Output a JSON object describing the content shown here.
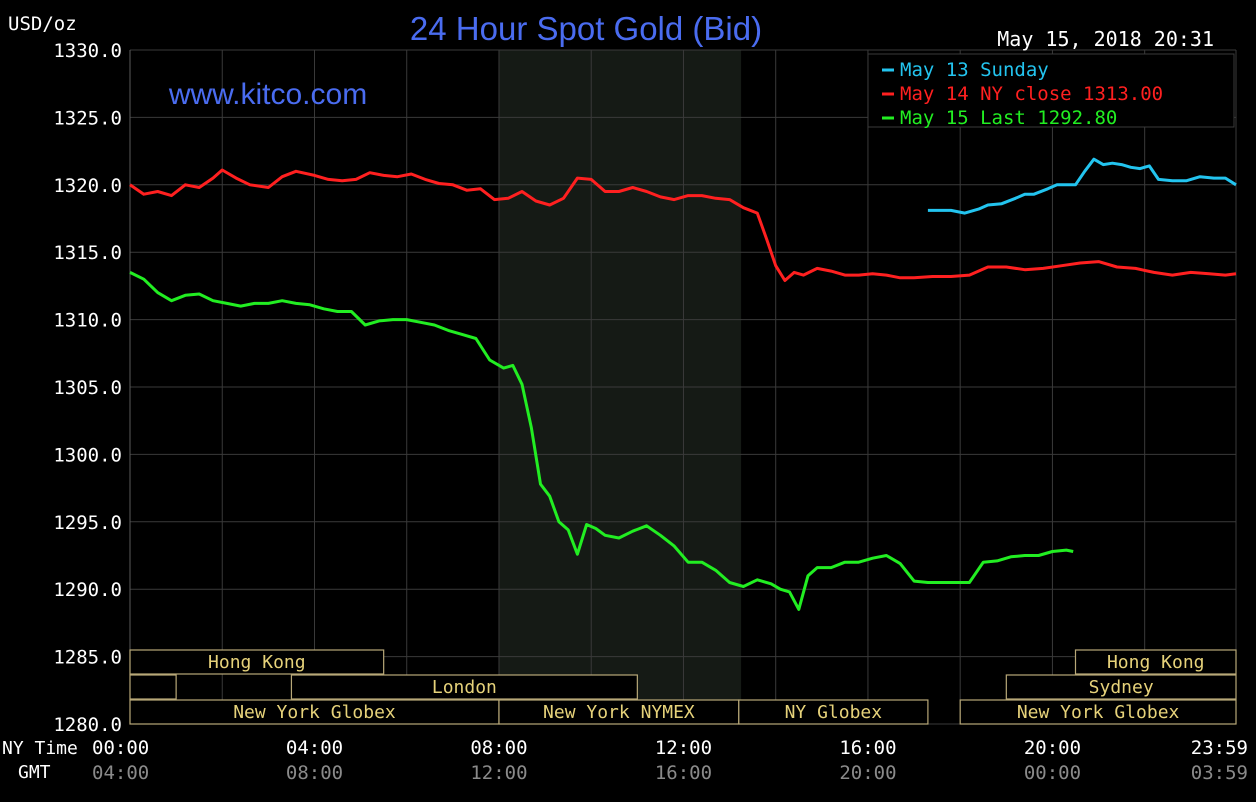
{
  "chart_data": {
    "type": "line",
    "title": "24 Hour Spot Gold (Bid)",
    "unit_label": "USD/oz",
    "watermark": "www.kitco.com",
    "timestamp": "May 15, 2018 20:31",
    "ylim": [
      1280,
      1330
    ],
    "y_ticks": [
      "1330.0",
      "1325.0",
      "1320.0",
      "1315.0",
      "1310.0",
      "1305.0",
      "1300.0",
      "1295.0",
      "1290.0",
      "1285.0",
      "1280.0"
    ],
    "x_axis_label_ny": "NY Time",
    "x_axis_label_gmt": "GMT",
    "x_ticks_ny": [
      "00:00",
      "04:00",
      "08:00",
      "12:00",
      "16:00",
      "20:00",
      "23:59"
    ],
    "x_ticks_gmt": [
      "04:00",
      "08:00",
      "12:00",
      "16:00",
      "20:00",
      "00:00",
      "03:59"
    ],
    "grid": true,
    "legend_position": "top-right",
    "colors": {
      "background": "#000000",
      "grid": "#3a3a3a",
      "title": "#4a6cf0",
      "session_fill": "#151a15",
      "session_border": "#b8a878",
      "session_text": "#e6d27a"
    },
    "series": [
      {
        "name": "May 13 Sunday",
        "color": "#23c4ef",
        "x": [
          17.3,
          17.6,
          17.8,
          18.1,
          18.4,
          18.6,
          18.9,
          19.2,
          19.4,
          19.6,
          19.9,
          20.1,
          20.3,
          20.5,
          20.7,
          20.9,
          21.1,
          21.3,
          21.5,
          21.7,
          21.9,
          22.1,
          22.3,
          22.6,
          22.9,
          23.2,
          23.5,
          23.75,
          23.98
        ],
        "values": [
          1318.1,
          1318.1,
          1318.1,
          1317.9,
          1318.2,
          1318.5,
          1318.6,
          1319.0,
          1319.3,
          1319.3,
          1319.7,
          1320.0,
          1320.0,
          1320.0,
          1321.0,
          1321.9,
          1321.5,
          1321.6,
          1321.5,
          1321.3,
          1321.2,
          1321.4,
          1320.4,
          1320.3,
          1320.3,
          1320.6,
          1320.5,
          1320.5,
          1320.0
        ]
      },
      {
        "name": "May 14 NY close 1313.00",
        "color": "#ff2020",
        "x": [
          0.0,
          0.3,
          0.6,
          0.9,
          1.2,
          1.5,
          1.8,
          2.0,
          2.3,
          2.6,
          3.0,
          3.3,
          3.6,
          4.0,
          4.3,
          4.6,
          4.9,
          5.2,
          5.5,
          5.8,
          6.1,
          6.4,
          6.7,
          7.0,
          7.3,
          7.6,
          7.9,
          8.2,
          8.5,
          8.8,
          9.1,
          9.4,
          9.7,
          10.0,
          10.3,
          10.6,
          10.9,
          11.2,
          11.5,
          11.8,
          12.1,
          12.4,
          12.7,
          13.0,
          13.3,
          13.6,
          13.8,
          14.0,
          14.2,
          14.4,
          14.6,
          14.9,
          15.2,
          15.5,
          15.8,
          16.1,
          16.4,
          16.7,
          17.0,
          17.4,
          17.8,
          18.2,
          18.6,
          19.0,
          19.4,
          19.8,
          20.2,
          20.6,
          21.0,
          21.4,
          21.8,
          22.2,
          22.6,
          23.0,
          23.4,
          23.75,
          23.98
        ],
        "values": [
          1320.0,
          1319.3,
          1319.5,
          1319.2,
          1320.0,
          1319.8,
          1320.5,
          1321.1,
          1320.5,
          1320.0,
          1319.8,
          1320.6,
          1321.0,
          1320.7,
          1320.4,
          1320.3,
          1320.4,
          1320.9,
          1320.7,
          1320.6,
          1320.8,
          1320.4,
          1320.1,
          1320.0,
          1319.6,
          1319.7,
          1318.9,
          1319.0,
          1319.5,
          1318.8,
          1318.5,
          1319.0,
          1320.5,
          1320.4,
          1319.5,
          1319.5,
          1319.8,
          1319.5,
          1319.1,
          1318.9,
          1319.2,
          1319.2,
          1319.0,
          1318.9,
          1318.3,
          1317.9,
          1316.0,
          1314.0,
          1312.9,
          1313.5,
          1313.3,
          1313.8,
          1313.6,
          1313.3,
          1313.3,
          1313.4,
          1313.3,
          1313.1,
          1313.1,
          1313.2,
          1313.2,
          1313.3,
          1313.9,
          1313.9,
          1313.7,
          1313.8,
          1314.0,
          1314.2,
          1314.3,
          1313.9,
          1313.8,
          1313.5,
          1313.3,
          1313.5,
          1313.4,
          1313.3,
          1313.4
        ]
      },
      {
        "name": "May 15 Last 1292.80",
        "color": "#22ee22",
        "x": [
          0.0,
          0.3,
          0.6,
          0.9,
          1.2,
          1.5,
          1.8,
          2.1,
          2.4,
          2.7,
          3.0,
          3.3,
          3.6,
          3.9,
          4.2,
          4.5,
          4.8,
          5.1,
          5.4,
          5.7,
          6.0,
          6.3,
          6.6,
          6.9,
          7.2,
          7.5,
          7.8,
          8.1,
          8.3,
          8.5,
          8.7,
          8.9,
          9.1,
          9.3,
          9.5,
          9.7,
          9.9,
          10.1,
          10.3,
          10.6,
          10.9,
          11.2,
          11.5,
          11.8,
          12.1,
          12.4,
          12.7,
          13.0,
          13.3,
          13.6,
          13.9,
          14.1,
          14.3,
          14.5,
          14.7,
          14.9,
          15.2,
          15.5,
          15.8,
          16.1,
          16.4,
          16.7,
          17.0,
          17.3,
          17.6,
          17.9,
          18.2,
          18.5,
          18.8,
          19.1,
          19.4,
          19.7,
          20.0,
          20.3,
          20.45
        ],
        "values": [
          1313.5,
          1313.0,
          1312.0,
          1311.4,
          1311.8,
          1311.9,
          1311.4,
          1311.2,
          1311.0,
          1311.2,
          1311.2,
          1311.4,
          1311.2,
          1311.1,
          1310.8,
          1310.6,
          1310.6,
          1309.6,
          1309.9,
          1310.0,
          1310.0,
          1309.8,
          1309.6,
          1309.2,
          1308.9,
          1308.6,
          1307.0,
          1306.4,
          1306.6,
          1305.2,
          1302.0,
          1297.8,
          1296.9,
          1295.0,
          1294.4,
          1292.6,
          1294.8,
          1294.5,
          1294.0,
          1293.8,
          1294.3,
          1294.7,
          1294.0,
          1293.2,
          1292.0,
          1292.0,
          1291.4,
          1290.5,
          1290.2,
          1290.7,
          1290.4,
          1290.0,
          1289.8,
          1288.5,
          1291.0,
          1291.6,
          1291.6,
          1292.0,
          1292.0,
          1292.3,
          1292.5,
          1291.9,
          1290.6,
          1290.5,
          1290.5,
          1290.5,
          1290.5,
          1292.0,
          1292.1,
          1292.4,
          1292.5,
          1292.5,
          1292.8,
          1292.9,
          1292.8
        ]
      }
    ],
    "highlight_band": {
      "x": [
        8.0,
        13.25
      ]
    },
    "market_sessions": [
      {
        "label": "Hong Kong",
        "row": 0,
        "x": [
          0.0,
          5.5
        ]
      },
      {
        "label": "",
        "row": 1,
        "x": [
          0.0,
          1.0
        ]
      },
      {
        "label": "London",
        "row": 1,
        "x": [
          3.5,
          11.0
        ]
      },
      {
        "label": "New York Globex",
        "row": 2,
        "x": [
          0.0,
          8.0
        ]
      },
      {
        "label": "New York NYMEX",
        "row": 2,
        "x": [
          8.0,
          13.2
        ]
      },
      {
        "label": "NY Globex",
        "row": 2,
        "x": [
          13.2,
          17.3
        ]
      },
      {
        "label": "New York Globex",
        "row": 2,
        "x": [
          18.0,
          23.98
        ]
      },
      {
        "label": "Sydney",
        "row": 1,
        "x": [
          19.0,
          23.98
        ]
      },
      {
        "label": "Hong Kong",
        "row": 0,
        "x": [
          20.5,
          23.98
        ]
      }
    ]
  }
}
